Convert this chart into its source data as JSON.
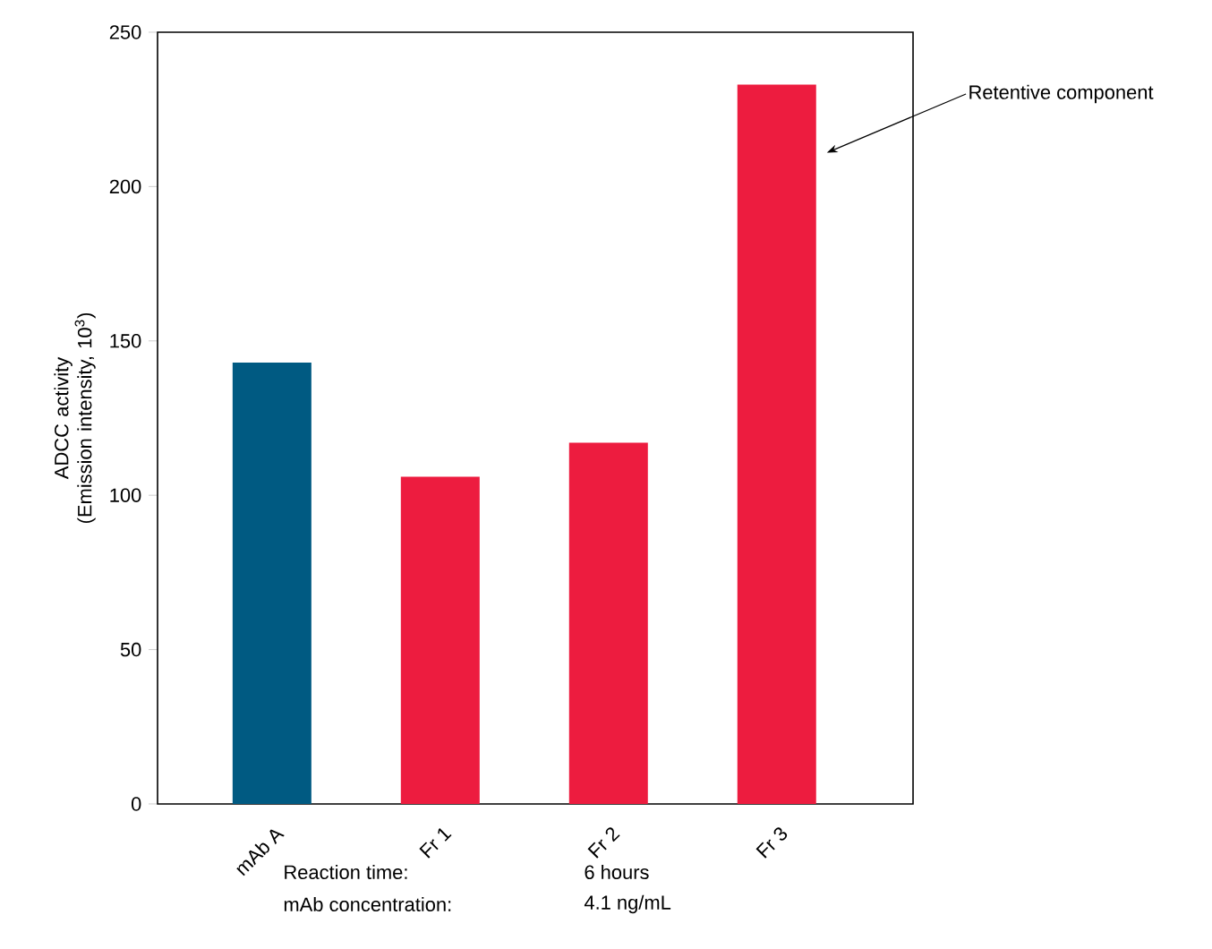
{
  "chart_data": {
    "type": "bar",
    "ylabel": "ADCC activity (Emission intensity, 10$^{3}$)",
    "categories": [
      "mAb A",
      "Fr 1",
      "Fr 2",
      "Fr 3"
    ],
    "values": [
      143,
      106,
      117,
      233
    ],
    "colors": [
      "#005a82",
      "#ed1c3f",
      "#ed1c3f",
      "#ed1c3f"
    ],
    "ylim": [
      0,
      250
    ],
    "yticks": [
      0,
      50,
      100,
      150,
      200,
      250
    ],
    "grid": false,
    "annotations": [
      "Retentive component",
      "Reaction time:",
      "6 hours",
      "mAb concentration:",
      "4.1 ng/mL"
    ]
  }
}
